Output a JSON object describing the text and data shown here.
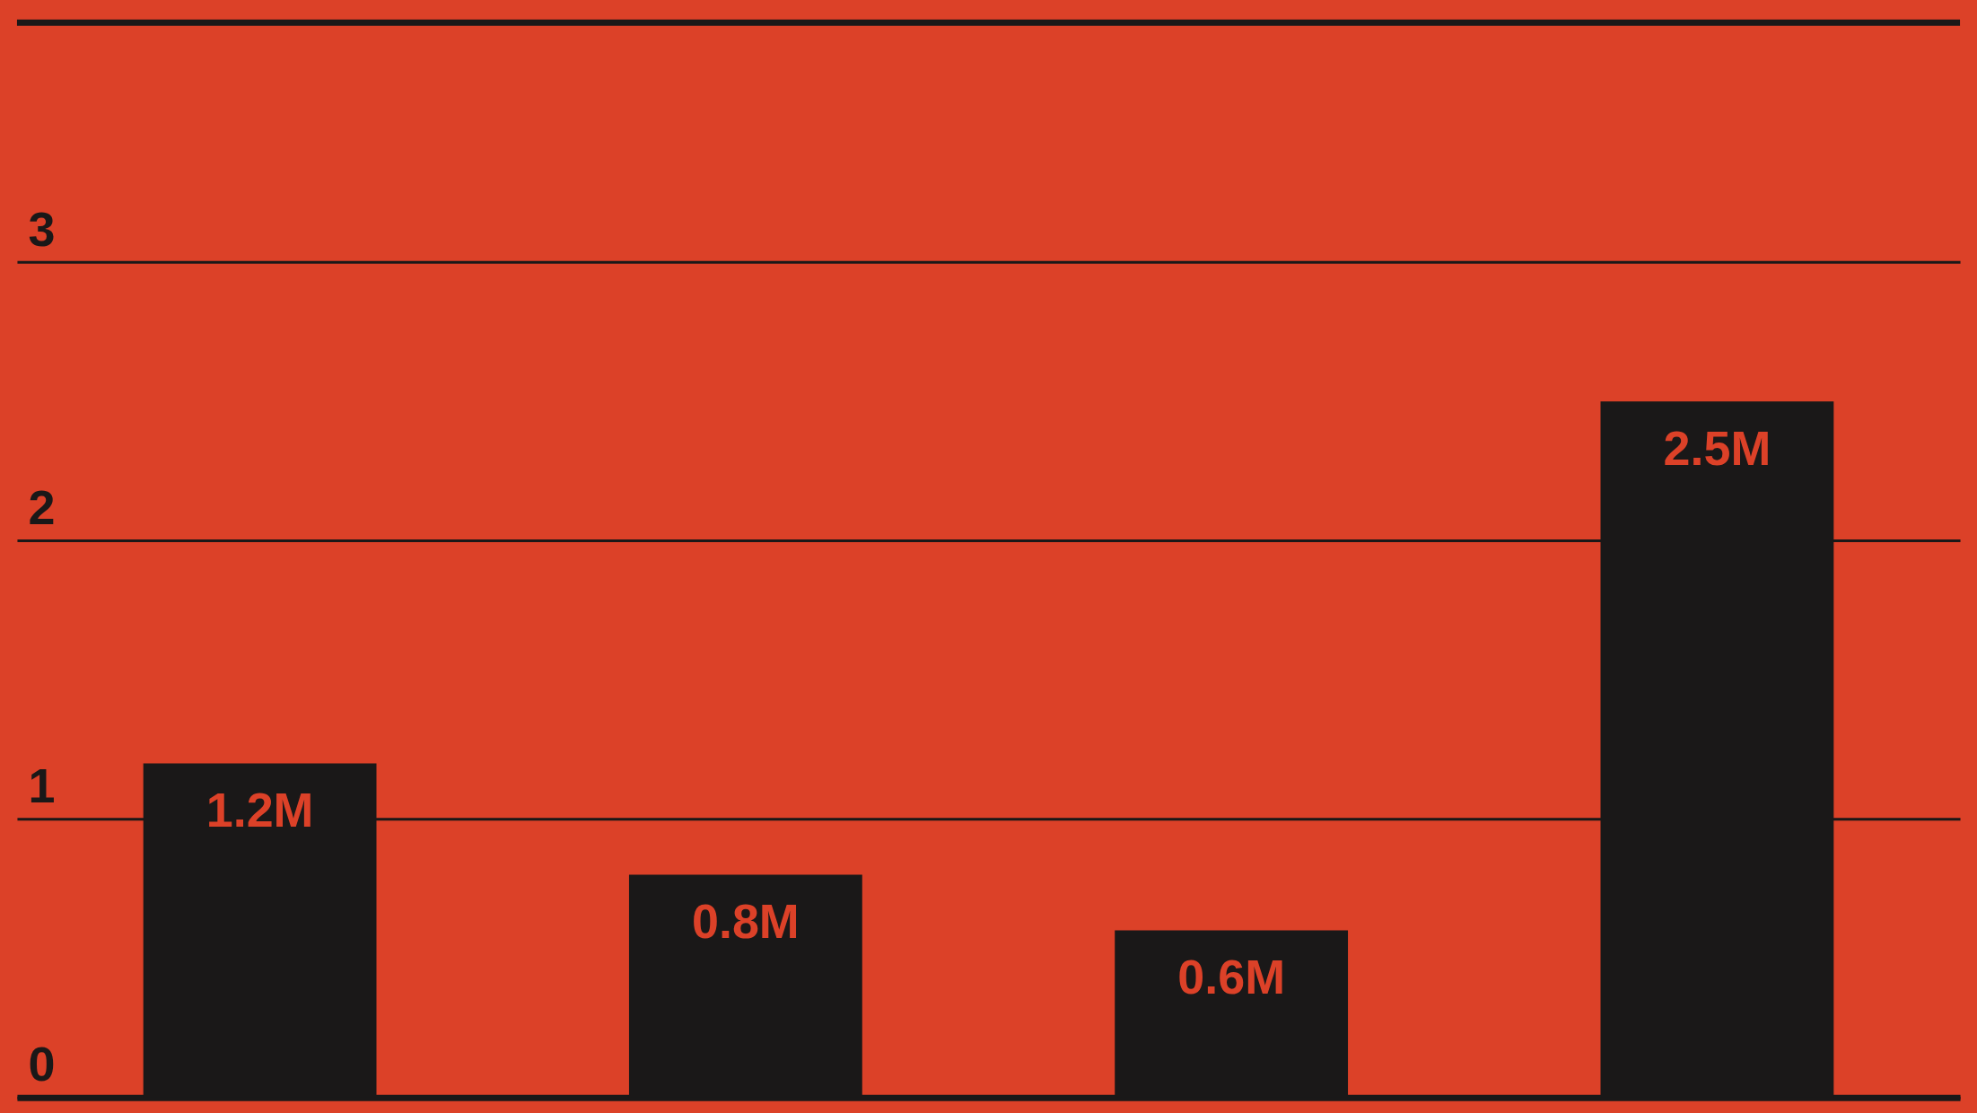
{
  "chart_data": {
    "type": "bar",
    "categories": [
      null,
      null,
      null,
      null
    ],
    "values": [
      1.2,
      0.8,
      0.6,
      2.5
    ],
    "value_labels": [
      "1.2M",
      "0.8M",
      "0.6M",
      "2.5M"
    ],
    "color": "#1a1818",
    "ylim": [
      0,
      3.86
    ],
    "yticks": [
      0,
      1,
      2,
      3
    ],
    "grid": "y"
  }
}
